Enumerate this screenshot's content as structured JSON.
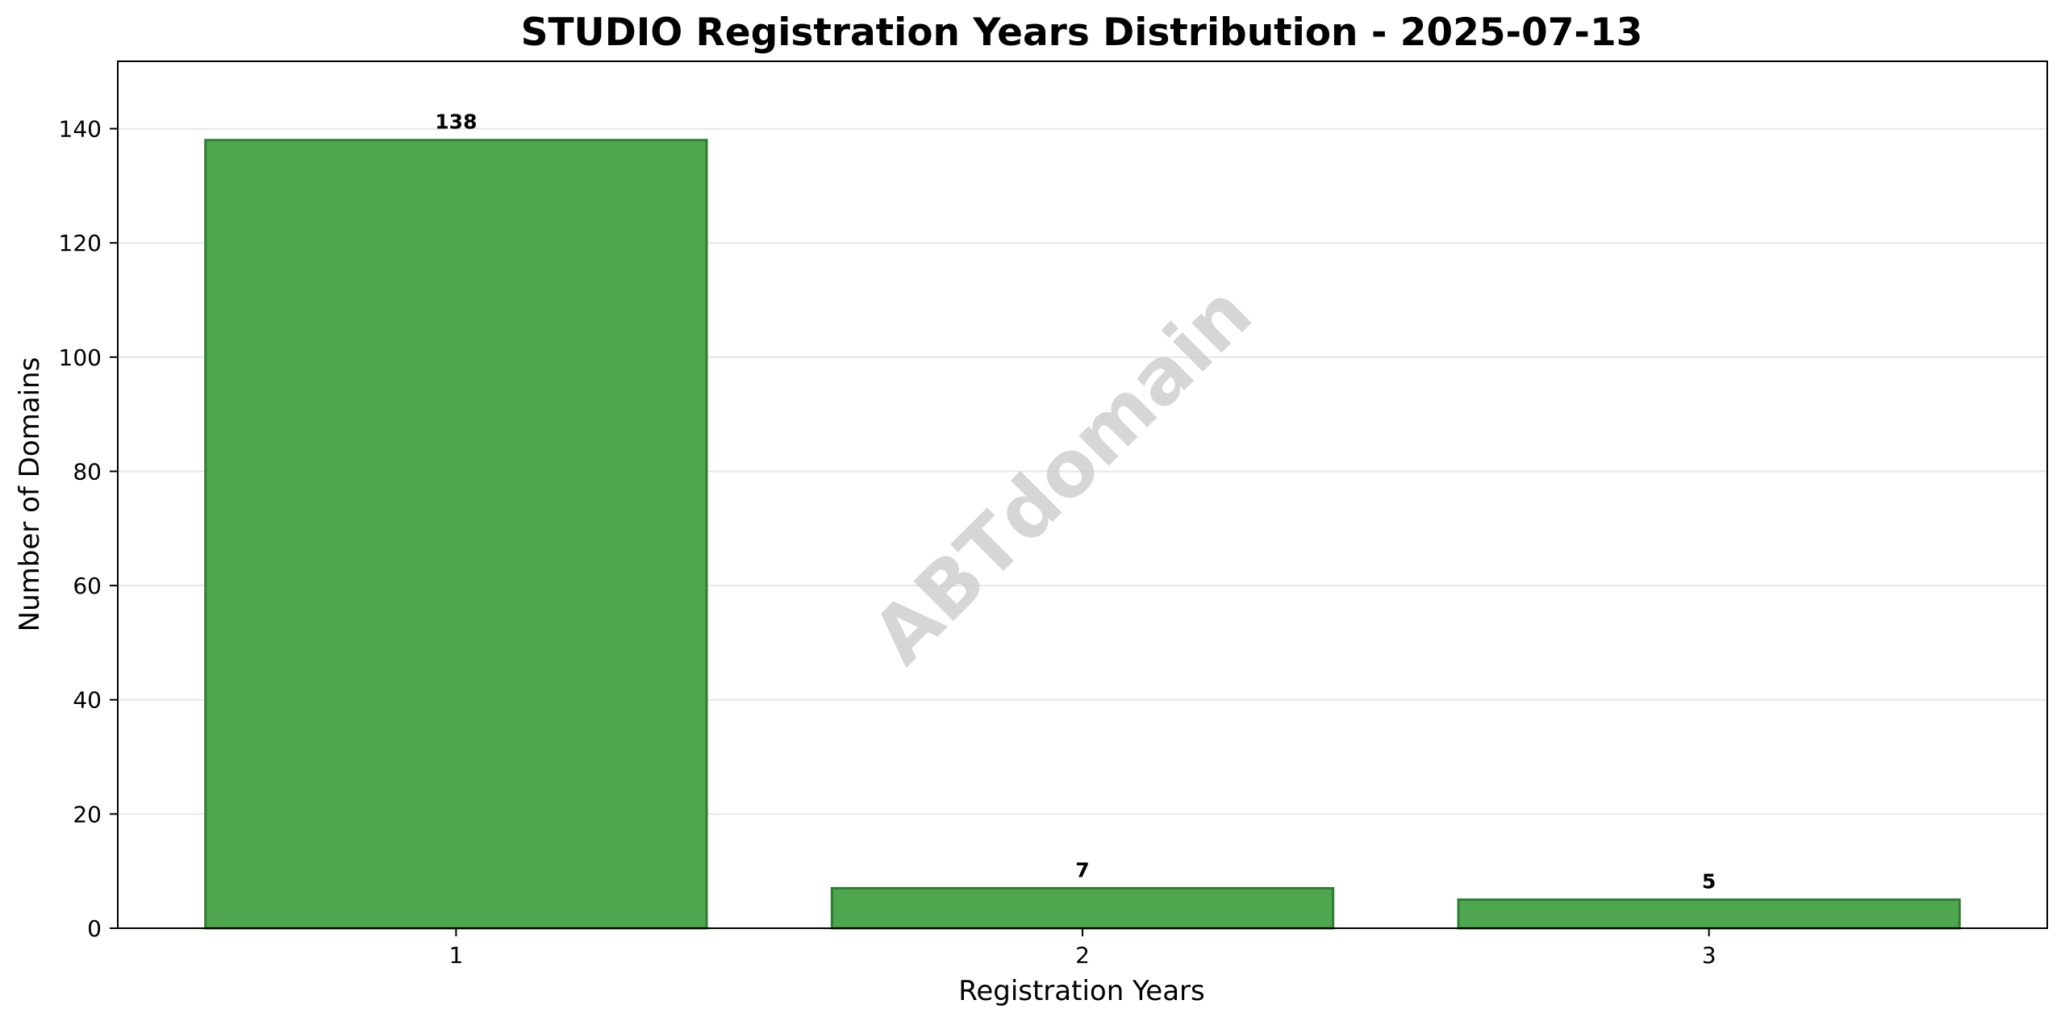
{
  "chart_data": {
    "type": "bar",
    "title": "STUDIO Registration Years Distribution - 2025-07-13",
    "xlabel": "Registration Years",
    "ylabel": "Number of Domains",
    "categories": [
      "1",
      "2",
      "3"
    ],
    "values": [
      138,
      7,
      5
    ],
    "data_labels": [
      "138",
      "7",
      "5"
    ],
    "ylim": [
      0,
      151.8
    ],
    "yticks": [
      0,
      20,
      40,
      60,
      80,
      100,
      120,
      140
    ],
    "grid": "y",
    "legend": "none",
    "watermark": "ABTdomain",
    "colors": {
      "bar_fill": "#4ea64e",
      "bar_edge": "#2e7d32",
      "grid": "#e6e6e6",
      "axis": "#000000",
      "watermark": "#c8c8c8"
    }
  }
}
